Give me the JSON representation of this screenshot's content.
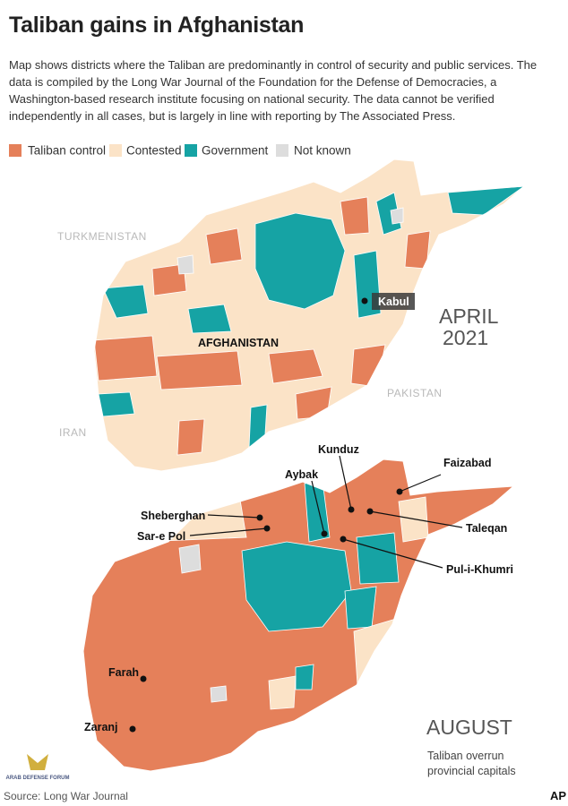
{
  "header": {
    "title": "Taliban gains in Afghanistan",
    "description": "Map shows districts where the Taliban are predominantly in control of security and public services. The data is compiled by the Long War Journal of the Foundation for the Defense of Democracies, a Washington-based research institute focusing on national security. The data cannot be verified independently in all cases, but is largely in line with reporting by The Associated Press."
  },
  "legend": [
    {
      "label": "Taliban control",
      "color": "#e5805a"
    },
    {
      "label": "Contested",
      "color": "#fbe3c7"
    },
    {
      "label": "Government",
      "color": "#16a3a4"
    },
    {
      "label": "Not known",
      "color": "#dddddd"
    }
  ],
  "top_map": {
    "period_lines": [
      "APRIL",
      "2021"
    ],
    "countries": [
      "TURKMENISTAN",
      "PAKISTAN",
      "IRAN"
    ],
    "country_label": "AFGHANISTAN",
    "capital": "Kabul"
  },
  "bottom_map": {
    "period": "AUGUST",
    "note_lines": [
      "Taliban overrun",
      "provincial capitals"
    ],
    "cities": [
      "Kunduz",
      "Faizabad",
      "Aybak",
      "Sheberghan",
      "Sar-e Pol",
      "Taleqan",
      "Pul-i-Khumri",
      "Farah",
      "Zaranj"
    ]
  },
  "source": "Source: Long War Journal",
  "watermark": "ARAB DEFENSE FORUM",
  "credit": "AP"
}
